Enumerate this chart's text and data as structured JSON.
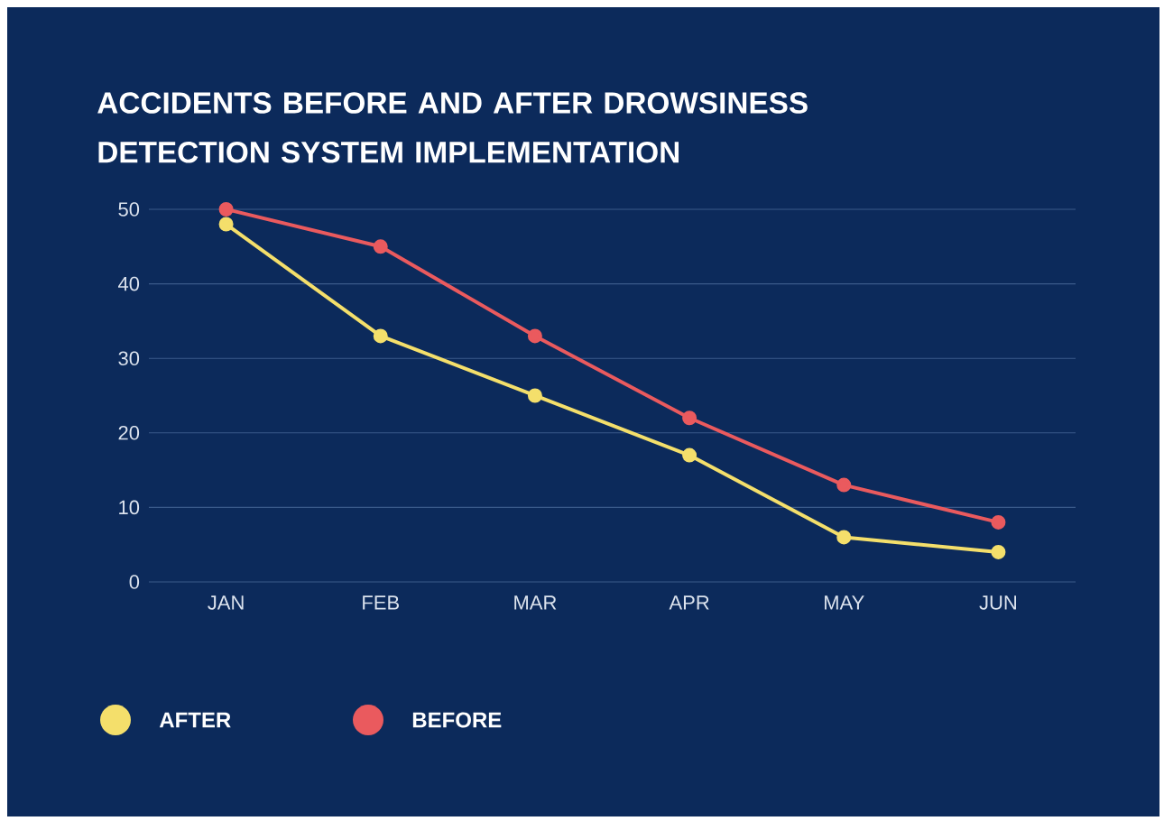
{
  "chart_data": {
    "type": "line",
    "title": "ACCIDENTS BEFORE AND AFTER DROWSINESS DETECTION SYSTEM IMPLEMENTATION",
    "categories": [
      "JAN",
      "FEB",
      "MAR",
      "APR",
      "MAY",
      "JUN"
    ],
    "series": [
      {
        "name": "AFTER",
        "color": "#f4df6b",
        "values": [
          48,
          33,
          25,
          17,
          6,
          4
        ]
      },
      {
        "name": "BEFORE",
        "color": "#ea5a5e",
        "values": [
          50,
          45,
          33,
          22,
          13,
          8
        ]
      }
    ],
    "ylim": [
      0,
      50
    ],
    "yticks": [
      0,
      10,
      20,
      30,
      40,
      50
    ],
    "grid": "y",
    "legend": "bottom left",
    "marker": "circle",
    "line_style": "solid"
  }
}
